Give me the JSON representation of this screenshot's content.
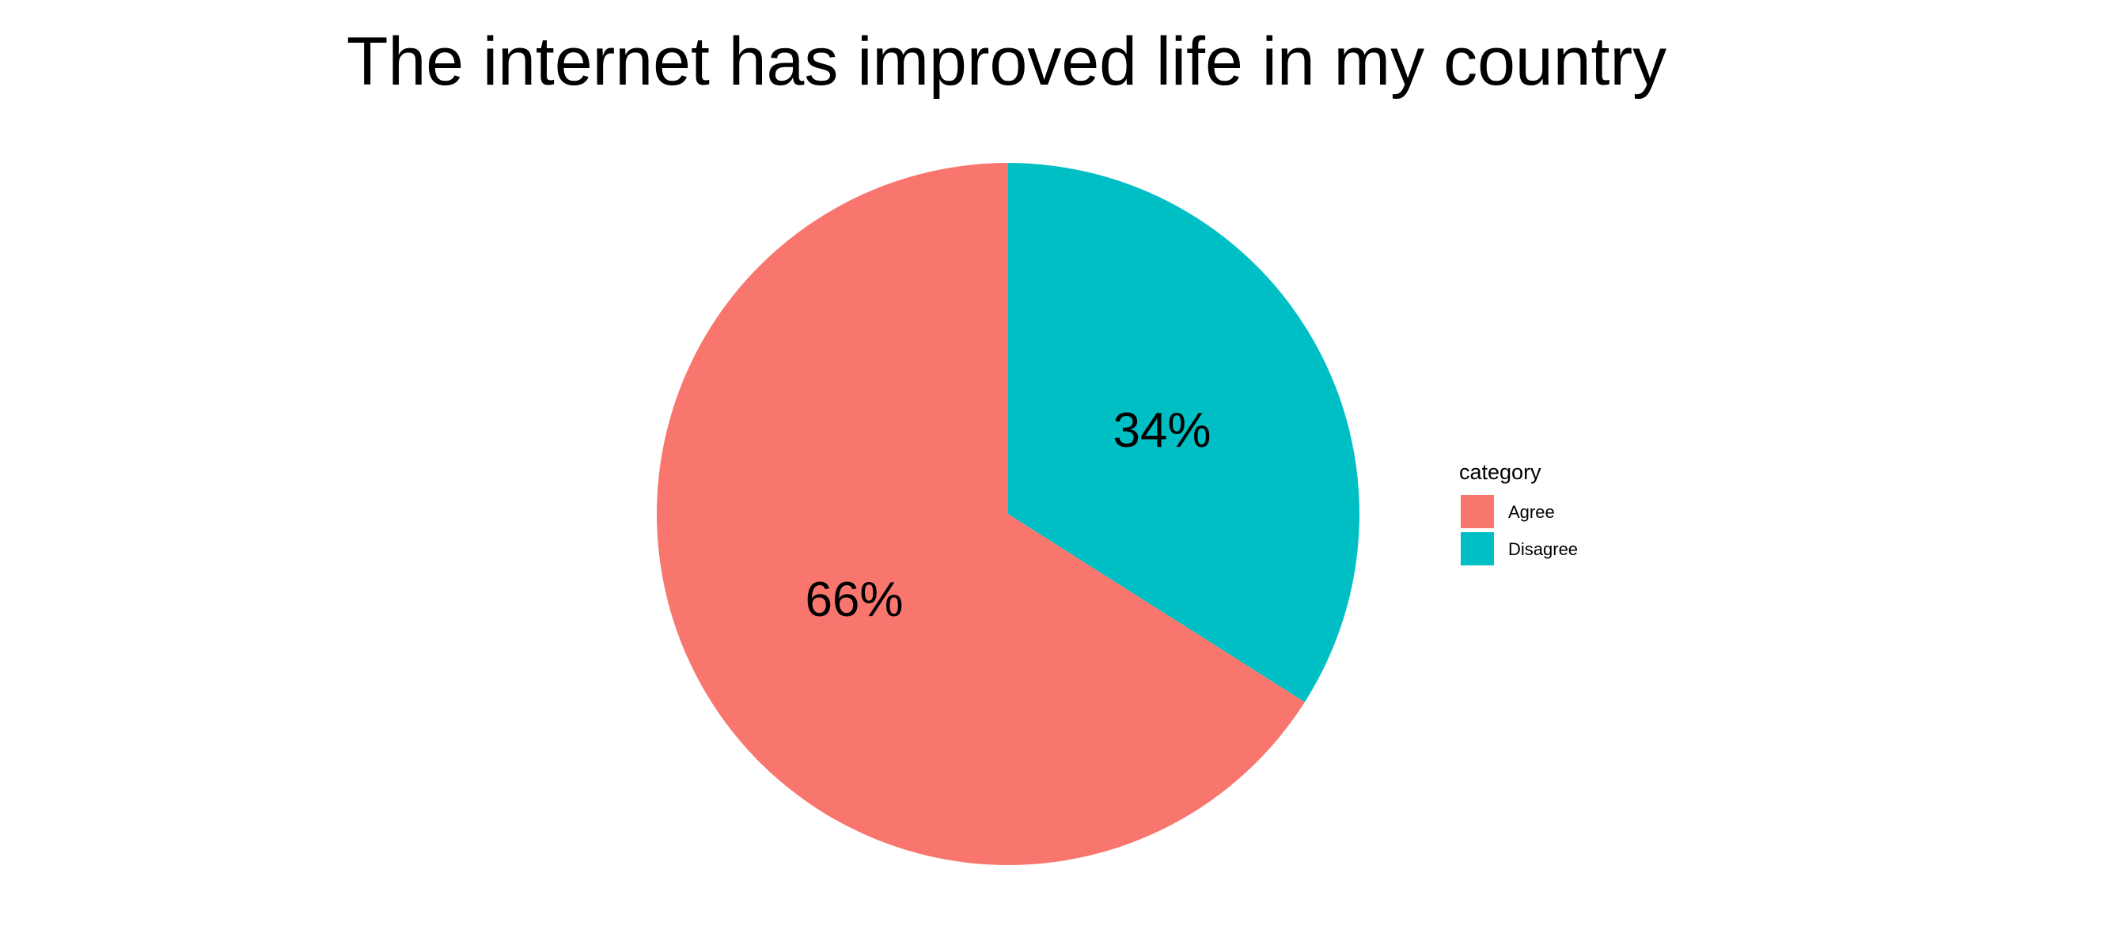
{
  "chart_data": {
    "type": "pie",
    "title": "The internet has improved life in my country",
    "categories": [
      "Agree",
      "Disagree"
    ],
    "values": [
      66,
      34
    ],
    "labels": [
      "66%",
      "34%"
    ],
    "colors": [
      "#F8766D",
      "#00BFC4"
    ],
    "start_angle": "12 o'clock",
    "direction": "counterclockwise",
    "legend": {
      "title": "category",
      "position": "right",
      "entries": [
        "Agree",
        "Disagree"
      ]
    },
    "grid": false
  }
}
